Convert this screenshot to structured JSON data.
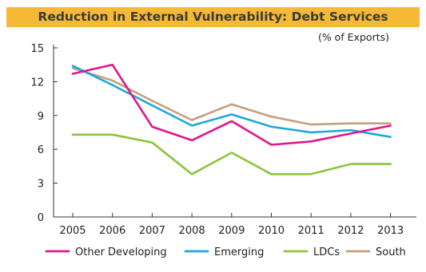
{
  "chart_data": {
    "type": "line",
    "title": "Reduction in External Vulnerability: Debt Services",
    "unit_label": "(% of Exports)",
    "x": [
      "2005",
      "2006",
      "2007",
      "2008",
      "2009",
      "2010",
      "2011",
      "2012",
      "2013"
    ],
    "ylim": [
      0,
      15
    ],
    "yticks": [
      0,
      3,
      6,
      9,
      12,
      15
    ],
    "grid": false,
    "legend_position": "bottom",
    "series": [
      {
        "name": "Other Developing",
        "color": "#e0168c",
        "values": [
          12.7,
          13.5,
          8.0,
          6.8,
          8.5,
          6.4,
          6.7,
          7.4,
          8.1
        ]
      },
      {
        "name": "Emerging",
        "color": "#1ea6de",
        "values": [
          13.4,
          11.7,
          9.9,
          8.1,
          9.1,
          8.0,
          7.5,
          7.7,
          7.1
        ]
      },
      {
        "name": "LDCs",
        "color": "#8cc43f",
        "values": [
          7.3,
          7.3,
          6.6,
          3.8,
          5.7,
          3.8,
          3.8,
          4.7,
          4.7
        ]
      },
      {
        "name": "South",
        "color": "#c4a07c",
        "values": [
          13.2,
          12.1,
          10.3,
          8.6,
          10.0,
          8.9,
          8.2,
          8.3,
          8.3
        ]
      }
    ]
  }
}
